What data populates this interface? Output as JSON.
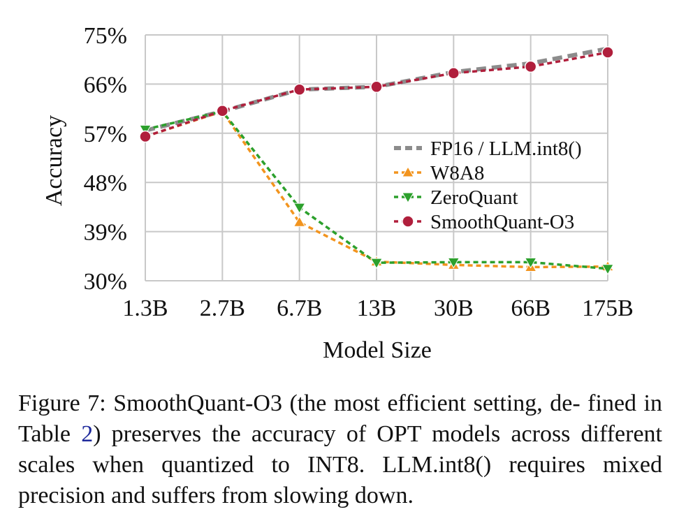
{
  "chart_data": {
    "type": "line",
    "xlabel": "Model Size",
    "ylabel": "Accuracy",
    "categories": [
      "1.3B",
      "2.7B",
      "6.7B",
      "13B",
      "30B",
      "66B",
      "175B"
    ],
    "yticks": [
      "30%",
      "39%",
      "48%",
      "57%",
      "66%",
      "75%"
    ],
    "ylim": [
      30,
      75
    ],
    "grid": true,
    "legend_position": "right",
    "series": [
      {
        "name": "FP16 / LLM.int8()",
        "values": [
          57.5,
          61.0,
          65.0,
          65.5,
          68.2,
          69.8,
          72.5
        ],
        "color": "#8c8c8c",
        "marker": "none"
      },
      {
        "name": "W8A8",
        "values": [
          56.4,
          61.0,
          40.7,
          33.5,
          32.9,
          32.5,
          32.6
        ],
        "color": "#f2941e",
        "marker": "triangle-up"
      },
      {
        "name": "ZeroQuant",
        "values": [
          57.7,
          61.0,
          43.4,
          33.3,
          33.4,
          33.4,
          32.2
        ],
        "color": "#2ca02c",
        "marker": "triangle-down"
      },
      {
        "name": "SmoothQuant-O3",
        "values": [
          56.4,
          61.1,
          65.0,
          65.5,
          68.0,
          69.2,
          71.8
        ],
        "color": "#b01f3c",
        "marker": "circle"
      }
    ]
  },
  "caption": {
    "lead": "Figure 7: SmoothQuant-O3 (the most efficient setting, de- fined in Table ",
    "ref": "2",
    "tail": ") preserves the accuracy of OPT models across different scales when quantized to INT8. LLM.int8() requires mixed precision and suffers from slowing down."
  }
}
